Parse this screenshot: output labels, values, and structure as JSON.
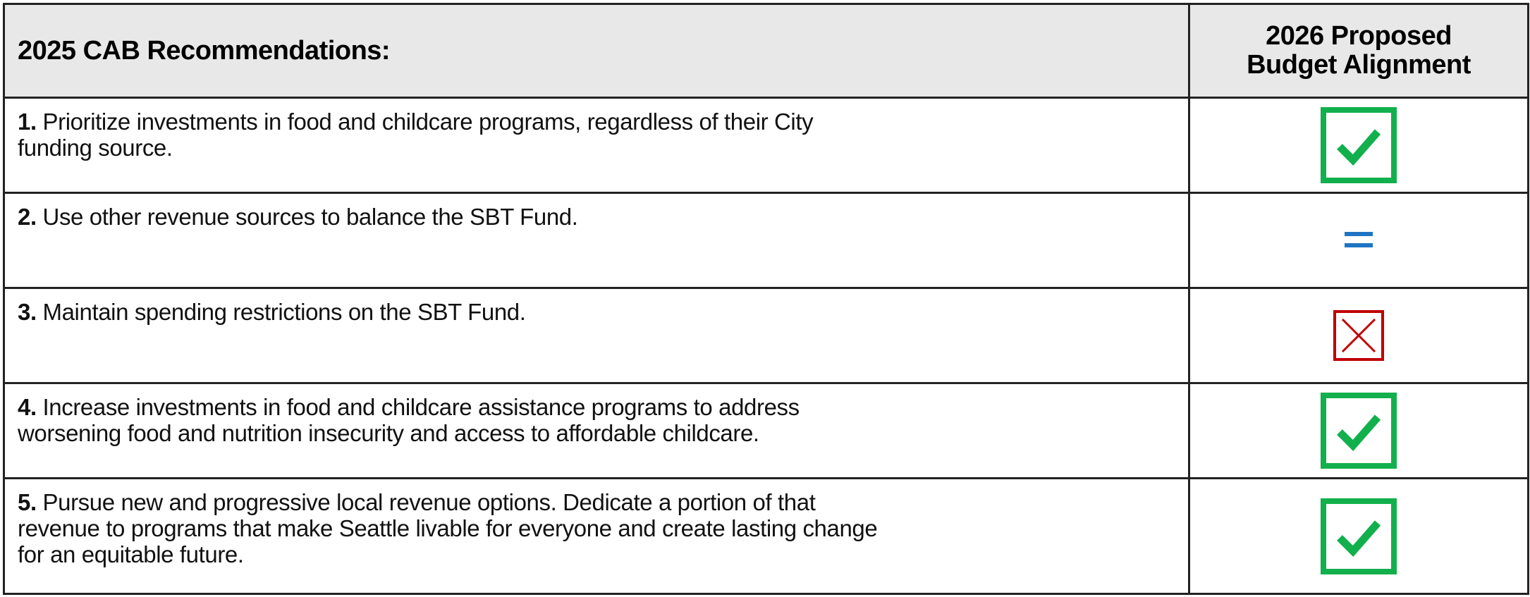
{
  "table": {
    "header": [
      "2025 CAB Recommendations:",
      "2026 Proposed Budget Alignment"
    ],
    "rows": [
      {
        "number": "1.",
        "text": "Prioritize investments in food and childcare programs, regardless of their City funding source."
      },
      {
        "number": "2.",
        "text": "Use other revenue sources to balance the SBT Fund."
      },
      {
        "number": "3.",
        "text": "Maintain spending restrictions on the SBT Fund."
      },
      {
        "number": "4.",
        "text": "Increase investments in food and childcare assistance programs to address worsening food and nutrition insecurity and access to affordable childcare."
      },
      {
        "number": "5.",
        "text": "Pursue new and progressive local revenue options. Dedicate a portion of that revenue to programs that make Seattle livable for everyone and create lasting change for an equitable future."
      }
    ]
  }
}
